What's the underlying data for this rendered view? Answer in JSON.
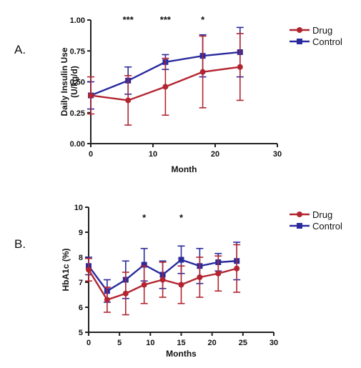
{
  "colors": {
    "drug": "#b22530",
    "control": "#2a2a9e",
    "axis": "#222222"
  },
  "chart_data": [
    {
      "panel": "A.",
      "type": "line",
      "xlabel": "Month",
      "ylabel_line1": "Daily Insulin Use",
      "ylabel_line2": "(U/kg/d)",
      "xlim": [
        0,
        30
      ],
      "ylim": [
        0,
        1
      ],
      "xticks": [
        "0",
        "10",
        "20",
        "30"
      ],
      "yticks": [
        "0.00",
        "0.25",
        "0.50",
        "0.75",
        "1.00"
      ],
      "legend_position": "top-right",
      "significance": [
        {
          "x": 6,
          "label": "***"
        },
        {
          "x": 12,
          "label": "***"
        },
        {
          "x": 18,
          "label": "*"
        }
      ],
      "series": [
        {
          "name": "Drug",
          "marker": "circle",
          "color": "#b22530",
          "x": [
            0,
            6,
            12,
            18,
            24
          ],
          "y": [
            0.39,
            0.35,
            0.46,
            0.58,
            0.62
          ],
          "err": [
            0.15,
            0.2,
            0.23,
            0.29,
            0.27
          ]
        },
        {
          "name": "Control",
          "marker": "square",
          "color": "#2a2a9e",
          "x": [
            0,
            6,
            12,
            18,
            24
          ],
          "y": [
            0.39,
            0.51,
            0.66,
            0.71,
            0.74
          ],
          "err": [
            0.11,
            0.11,
            0.06,
            0.17,
            0.2
          ]
        }
      ]
    },
    {
      "panel": "B.",
      "type": "line",
      "xlabel": "Months",
      "ylabel_line1": "HbA1c (%)",
      "ylabel_line2": "",
      "xlim": [
        0,
        30
      ],
      "ylim": [
        5,
        10
      ],
      "xticks": [
        "0",
        "5",
        "10",
        "15",
        "20",
        "25",
        "30"
      ],
      "yticks": [
        "5",
        "6",
        "7",
        "8",
        "9",
        "10"
      ],
      "legend_position": "top-right",
      "significance": [
        {
          "x": 9,
          "label": "*"
        },
        {
          "x": 15,
          "label": "*"
        }
      ],
      "series": [
        {
          "name": "Drug",
          "marker": "circle",
          "color": "#b22530",
          "x": [
            0,
            3,
            6,
            9,
            12,
            15,
            18,
            21,
            24
          ],
          "y": [
            7.5,
            6.3,
            6.55,
            6.9,
            7.1,
            6.9,
            7.2,
            7.35,
            7.55
          ],
          "err": [
            0.45,
            0.5,
            0.85,
            0.75,
            0.7,
            0.75,
            0.8,
            0.7,
            0.95
          ]
        },
        {
          "name": "Control",
          "marker": "square",
          "color": "#2a2a9e",
          "x": [
            0,
            3,
            6,
            9,
            12,
            15,
            18,
            21,
            24
          ],
          "y": [
            7.65,
            6.65,
            7.1,
            7.7,
            7.3,
            7.9,
            7.65,
            7.8,
            7.85
          ],
          "err": [
            0.35,
            0.45,
            0.75,
            0.65,
            0.55,
            0.55,
            0.7,
            0.35,
            0.75
          ]
        }
      ]
    }
  ]
}
